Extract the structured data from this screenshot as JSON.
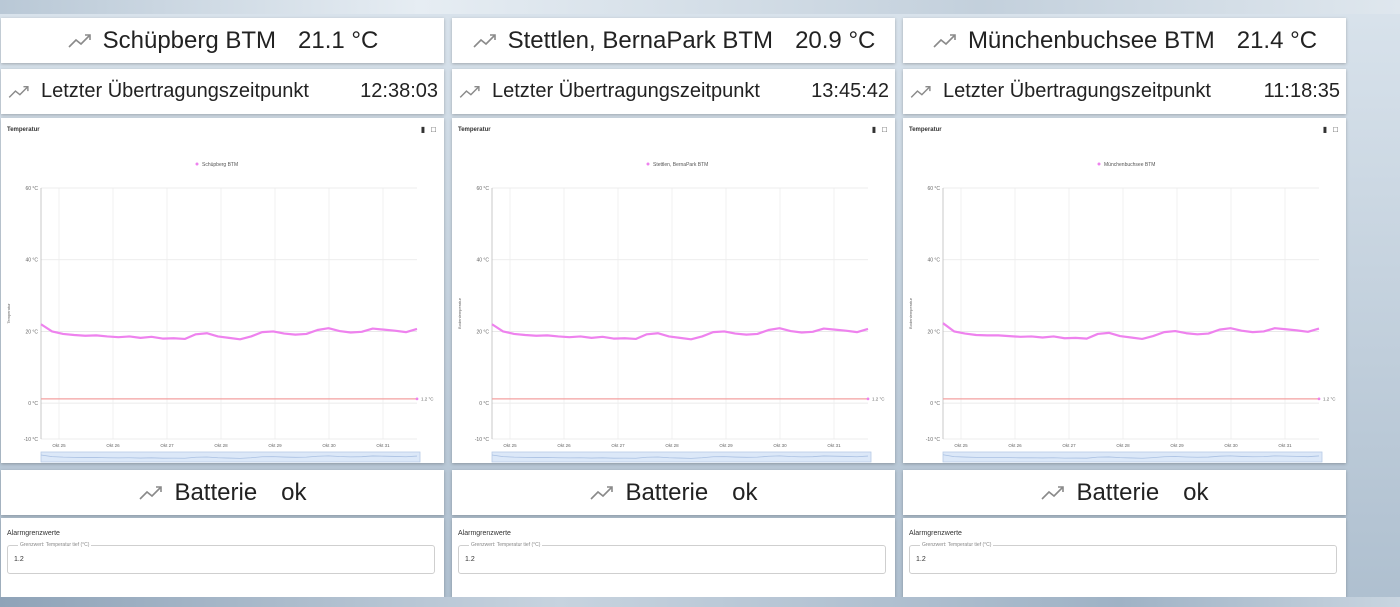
{
  "panels": [
    {
      "sensor_name": "Schüpberg BTM",
      "temperature": "21.1 °C",
      "last_transmission_label": "Letzter Übertragungszeitpunkt",
      "last_transmission_time": "12:38:03",
      "chart_title": "Temperatur",
      "legend": "Schüpberg BTM",
      "battery_label": "Batterie",
      "battery_value": "ok",
      "alarm_title": "Alarmgrenzwerte",
      "alarm_field_label": "Grenzwert: Temperatur tief (°C)",
      "alarm_field_value": "1.2"
    },
    {
      "sensor_name": "Stettlen, BernaPark BTM",
      "temperature": "20.9 °C",
      "last_transmission_label": "Letzter Übertragungszeitpunkt",
      "last_transmission_time": "13:45:42",
      "chart_title": "Temperatur",
      "legend": "Stettlen, BernaPark BTM",
      "battery_label": "Batterie",
      "battery_value": "ok",
      "alarm_title": "Alarmgrenzwerte",
      "alarm_field_label": "Grenzwert: Temperatur tief (°C)",
      "alarm_field_value": "1.2"
    },
    {
      "sensor_name": "Münchenbuchsee BTM",
      "temperature": "21.4 °C",
      "last_transmission_label": "Letzter Übertragungszeitpunkt",
      "last_transmission_time": "11:18:35",
      "chart_title": "Temperatur",
      "legend": "Münchenbuchsee BTM",
      "battery_label": "Batterie",
      "battery_value": "ok",
      "alarm_title": "Alarmgrenzwerte",
      "alarm_field_label": "Grenzwert: Temperatur tief (°C)",
      "alarm_field_value": "1.2"
    }
  ],
  "chart_data": [
    {
      "type": "line",
      "title": "Temperatur",
      "ylabel": "Temperatur",
      "ylim": [
        -10,
        60
      ],
      "yticks": [
        "60 °C",
        "40 °C",
        "20 °C",
        "0 °C",
        "-10 °C"
      ],
      "xticks": [
        "Okt 25",
        "Okt 26",
        "Okt 27",
        "Okt 28",
        "Okt 29",
        "Okt 30",
        "Okt 31"
      ],
      "series": [
        {
          "name": "Schüpberg BTM",
          "color": "#ee82ee",
          "values": [
            22.0,
            20.0,
            19.3,
            19.0,
            18.8,
            18.9,
            18.6,
            18.4,
            18.6,
            18.2,
            18.5,
            18.0,
            18.1,
            17.9,
            19.2,
            19.5,
            18.6,
            18.2,
            17.8,
            18.6,
            19.8,
            20.0,
            19.4,
            19.1,
            19.3,
            20.4,
            20.9,
            20.1,
            19.7,
            19.9,
            20.8,
            20.5,
            20.2,
            19.8,
            20.7
          ]
        },
        {
          "name": "1.2 °C",
          "color": "#f3a0a0",
          "values": [
            1.2,
            1.2
          ]
        }
      ],
      "threshold_label": "1.2 °C",
      "legend": "top-center",
      "grid": true
    },
    {
      "type": "line",
      "title": "Temperatur",
      "ylabel": "Bodentemperatur",
      "ylim": [
        -10,
        60
      ],
      "yticks": [
        "60 °C",
        "40 °C",
        "20 °C",
        "0 °C",
        "-10 °C"
      ],
      "xticks": [
        "Okt 25",
        "Okt 26",
        "Okt 27",
        "Okt 28",
        "Okt 29",
        "Okt 30",
        "Okt 31"
      ],
      "series": [
        {
          "name": "Stettlen, BernaPark BTM",
          "color": "#ee82ee",
          "values": [
            22.0,
            20.0,
            19.3,
            19.0,
            18.8,
            18.9,
            18.6,
            18.4,
            18.6,
            18.2,
            18.5,
            18.0,
            18.1,
            17.9,
            19.2,
            19.5,
            18.6,
            18.2,
            17.8,
            18.6,
            19.8,
            20.0,
            19.4,
            19.1,
            19.3,
            20.4,
            20.9,
            20.1,
            19.7,
            19.9,
            20.8,
            20.5,
            20.2,
            19.8,
            20.7
          ]
        },
        {
          "name": "1.2 °C",
          "color": "#f3a0a0",
          "values": [
            1.2,
            1.2
          ]
        }
      ],
      "threshold_label": "1.2 °C",
      "legend": "top-center",
      "grid": true
    },
    {
      "type": "line",
      "title": "Temperatur",
      "ylabel": "Bodentemperatur",
      "ylim": [
        -10,
        60
      ],
      "yticks": [
        "60 °C",
        "40 °C",
        "20 °C",
        "0 °C",
        "-10 °C"
      ],
      "xticks": [
        "Okt 25",
        "Okt 26",
        "Okt 27",
        "Okt 28",
        "Okt 29",
        "Okt 30",
        "Okt 31"
      ],
      "series": [
        {
          "name": "Münchenbuchsee BTM",
          "color": "#ee82ee",
          "values": [
            22.3,
            20.0,
            19.4,
            19.0,
            18.9,
            18.9,
            18.7,
            18.5,
            18.6,
            18.3,
            18.6,
            18.1,
            18.2,
            18.0,
            19.3,
            19.6,
            18.7,
            18.3,
            17.9,
            18.7,
            19.8,
            20.1,
            19.5,
            19.2,
            19.4,
            20.5,
            20.9,
            20.2,
            19.8,
            20.0,
            20.9,
            20.6,
            20.3,
            19.9,
            20.8
          ]
        },
        {
          "name": "1.2 °C",
          "color": "#f3a0a0",
          "values": [
            1.2,
            1.2
          ]
        }
      ],
      "threshold_label": "1.2 °C",
      "legend": "top-center",
      "grid": true
    }
  ]
}
